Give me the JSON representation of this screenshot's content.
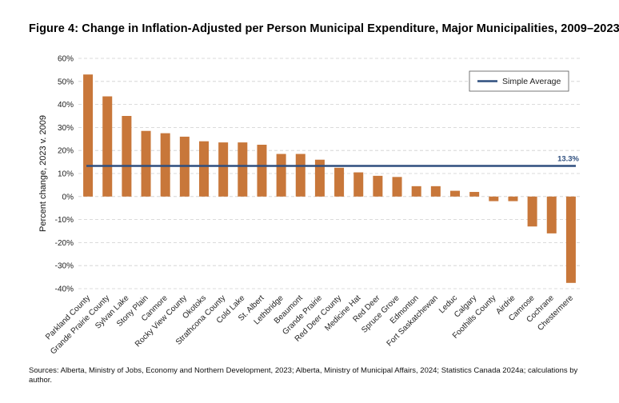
{
  "title": "Figure 4: Change in Inflation-Adjusted per Person Municipal Expenditure, Major Municipalities, 2009–2023",
  "source": "Sources: Alberta, Ministry of Jobs, Economy and Northern Development, 2023; Alberta, Ministry of Municipal Affairs, 2024; Statistics Canada 2024a; calculations by author.",
  "chart_data": {
    "type": "bar",
    "ylabel": "Percent change, 2023 v. 2009",
    "xlabel": "",
    "ylim": [
      -40,
      60
    ],
    "yticks": [
      -40,
      -30,
      -20,
      -10,
      0,
      10,
      20,
      30,
      40,
      50,
      60
    ],
    "ytick_labels": [
      "-40%",
      "-30%",
      "-20%",
      "-10%",
      "0%",
      "10%",
      "20%",
      "30%",
      "40%",
      "50%",
      "60%"
    ],
    "grid": true,
    "categories": [
      "Parkland County",
      "Grande Prairie County",
      "Sylvan Lake",
      "Stony Plain",
      "Canmore",
      "Rocky View County",
      "Okotoks",
      "Strathcona County",
      "Cold Lake",
      "St. Albert",
      "Lethbridge",
      "Beaumont",
      "Grande Prairie",
      "Red Deer County",
      "Medicine Hat",
      "Red Deer",
      "Spruce Grove",
      "Edmonton",
      "Fort Saskatchewan",
      "Leduc",
      "Calgary",
      "Foothills County",
      "Airdrie",
      "Camrose",
      "Cochrane",
      "Chestermere"
    ],
    "values": [
      53,
      43.5,
      35,
      28.5,
      27.5,
      26,
      24,
      23.5,
      23.5,
      22.5,
      18.5,
      18.5,
      16,
      12.5,
      10.5,
      9,
      8.5,
      4.5,
      4.5,
      2.5,
      2,
      -2,
      -2,
      -13,
      -16,
      -37.5
    ],
    "bar_color": "#C8773A",
    "average": {
      "label": "Simple Average",
      "value": 13.3,
      "value_label": "13.3%",
      "color": "#2E4E7E"
    },
    "legend": {
      "position": "top-right",
      "entries": [
        "Simple Average"
      ]
    }
  }
}
